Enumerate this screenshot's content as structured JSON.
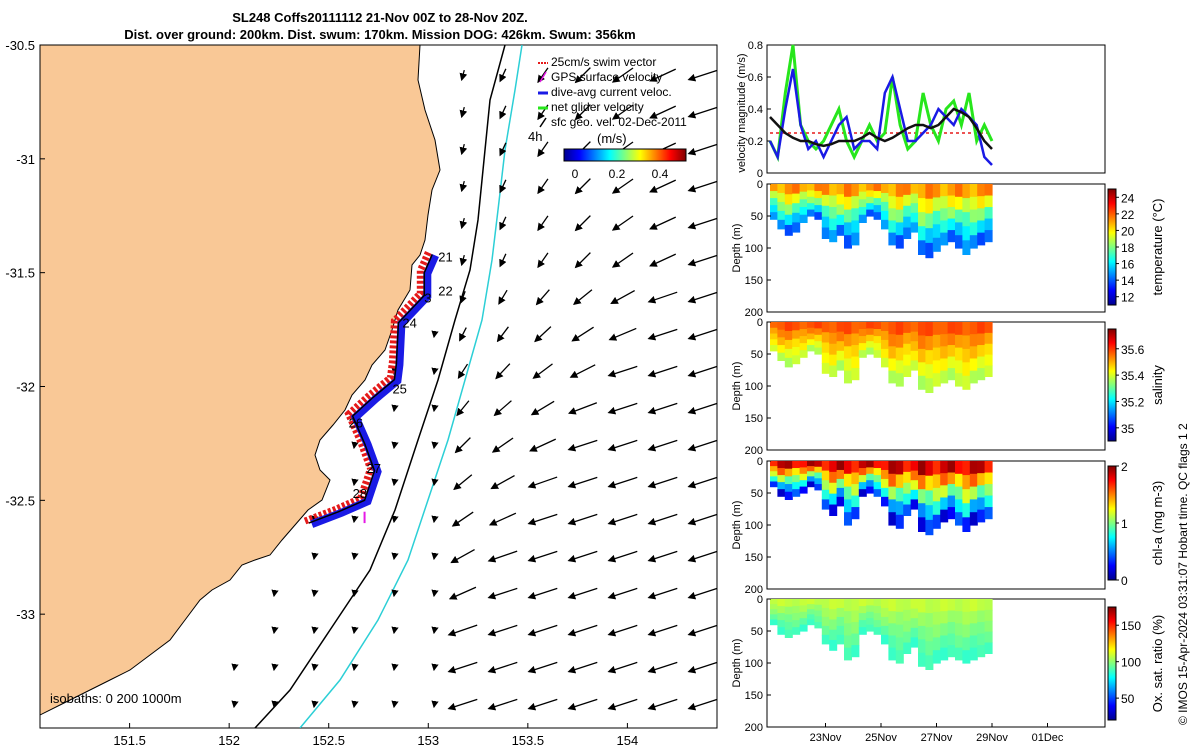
{
  "header": {
    "title_line1": "SL248 Coffs20111112 21-Nov 00Z to 28-Nov 20Z.",
    "title_line2": "Dist. over ground: 200km. Dist. swum: 170km. Mission DOG: 426km. Swum: 356km"
  },
  "credit": "© IMOS 15-Apr-2024 03:31:07 Hobart time. QC flags 1  2",
  "colors": {
    "land": "#f9c896",
    "track_red": "#e51a1a",
    "track_blue": "#1a1ae5",
    "gps_magenta": "#e619e6",
    "net_green": "#27e61c",
    "isobath_cyan": "#2ccfd6"
  },
  "chart_data": [
    {
      "type": "map",
      "xlim": [
        151.05,
        154.45
      ],
      "ylim": [
        -33.5,
        -30.5
      ],
      "xticks": [
        "151.5",
        "152",
        "152.5",
        "153",
        "153.5",
        "154"
      ],
      "yticks": [
        "-30.5",
        "-31",
        "-31.5",
        "-32",
        "-32.5",
        "-33"
      ],
      "isobaths_label": "isobaths: 0  200  1000m",
      "legend": [
        "25cm/s swim vector",
        "GPS surface velocity",
        "dive-avg current veloc.",
        "net glider velocity",
        "sfc geo. vel. 02-Dec-2011"
      ],
      "scale_label": "4h",
      "colorbar": {
        "label": "(m/s)",
        "ticks": [
          "0",
          "0.2",
          "0.4"
        ],
        "range": [
          0,
          0.5
        ]
      },
      "day_labels": [
        {
          "text": "21",
          "lon": 153.05,
          "lat": -31.45
        },
        {
          "text": "22",
          "lon": 153.05,
          "lat": -31.6
        },
        {
          "text": "3",
          "lon": 152.98,
          "lat": -31.63
        },
        {
          "text": "24",
          "lon": 152.87,
          "lat": -31.74
        },
        {
          "text": "25",
          "lon": 152.82,
          "lat": -32.03
        },
        {
          "text": "26",
          "lon": 152.6,
          "lat": -32.18
        },
        {
          "text": "27",
          "lon": 152.69,
          "lat": -32.38
        },
        {
          "text": "28",
          "lon": 152.62,
          "lat": -32.49
        }
      ],
      "track": [
        [
          153.02,
          -31.42
        ],
        [
          152.98,
          -31.5
        ],
        [
          152.98,
          -31.6
        ],
        [
          152.85,
          -31.72
        ],
        [
          152.84,
          -31.9
        ],
        [
          152.83,
          -31.97
        ],
        [
          152.72,
          -32.05
        ],
        [
          152.62,
          -32.13
        ],
        [
          152.68,
          -32.25
        ],
        [
          152.73,
          -32.37
        ],
        [
          152.68,
          -32.5
        ],
        [
          152.55,
          -32.55
        ],
        [
          152.4,
          -32.6
        ]
      ]
    },
    {
      "type": "line",
      "ylabel": "velocity magnitude (m/s)",
      "ylim": [
        0,
        0.8
      ],
      "yticks": [
        "0",
        "0.2",
        "0.4",
        "0.6",
        "0.8"
      ],
      "series": [
        {
          "name": "net glider velocity",
          "color": "#27e61c",
          "values": [
            0.2,
            0.1,
            0.5,
            0.8,
            0.3,
            0.2,
            0.15,
            0.2,
            0.3,
            0.4,
            0.2,
            0.1,
            0.2,
            0.3,
            0.2,
            0.25,
            0.6,
            0.3,
            0.15,
            0.2,
            0.5,
            0.3,
            0.2,
            0.4,
            0.45,
            0.3,
            0.5,
            0.2,
            0.3,
            0.2
          ]
        },
        {
          "name": "dive-avg current veloc.",
          "color": "#1a1ae5",
          "values": [
            0.2,
            0.1,
            0.4,
            0.65,
            0.3,
            0.15,
            0.2,
            0.1,
            0.2,
            0.3,
            0.35,
            0.15,
            0.2,
            0.2,
            0.15,
            0.5,
            0.6,
            0.4,
            0.2,
            0.2,
            0.25,
            0.3,
            0.4,
            0.35,
            0.3,
            0.4,
            0.35,
            0.3,
            0.1,
            0.05
          ]
        },
        {
          "name": "sfc geo. vel.",
          "color": "#111111",
          "values": [
            0.35,
            0.3,
            0.25,
            0.22,
            0.2,
            0.2,
            0.18,
            0.17,
            0.18,
            0.2,
            0.2,
            0.2,
            0.22,
            0.25,
            0.22,
            0.2,
            0.22,
            0.25,
            0.28,
            0.3,
            0.3,
            0.28,
            0.3,
            0.35,
            0.4,
            0.38,
            0.35,
            0.28,
            0.2,
            0.15
          ]
        }
      ]
    },
    {
      "type": "heatmap",
      "ylabel": "Depth (m)",
      "ylim": [
        0,
        200
      ],
      "yticks": [
        "0",
        "50",
        "100",
        "150",
        "200"
      ],
      "colorbar_label": "temperature (°C)",
      "colorbar_ticks": [
        "12",
        "14",
        "16",
        "18",
        "20",
        "22",
        "24"
      ],
      "range": [
        11,
        25
      ],
      "surface_value": 22,
      "bottom_value": 13.5,
      "depth_profile": [
        55,
        70,
        80,
        75,
        60,
        50,
        55,
        85,
        90,
        80,
        100,
        95,
        60,
        50,
        55,
        70,
        95,
        100,
        85,
        75,
        110,
        115,
        105,
        95,
        90,
        100,
        110,
        100,
        95,
        90
      ]
    },
    {
      "type": "heatmap",
      "ylabel": "Depth (m)",
      "ylim": [
        0,
        200
      ],
      "yticks": [
        "0",
        "50",
        "100",
        "150",
        "200"
      ],
      "colorbar_label": "salinity",
      "colorbar_ticks": [
        "35",
        "35.2",
        "35.4",
        "35.6"
      ],
      "range": [
        34.9,
        35.75
      ],
      "surface_value": 35.6,
      "bottom_value": 35.35,
      "depth_profile": [
        45,
        60,
        70,
        65,
        55,
        45,
        50,
        80,
        85,
        75,
        95,
        90,
        55,
        50,
        55,
        70,
        95,
        100,
        85,
        75,
        105,
        110,
        100,
        95,
        90,
        100,
        105,
        95,
        90,
        85
      ]
    },
    {
      "type": "heatmap",
      "ylabel": "Depth (m)",
      "ylim": [
        0,
        200
      ],
      "yticks": [
        "0",
        "50",
        "100",
        "150",
        "200"
      ],
      "colorbar_label": "chl-a (mg m-3)",
      "colorbar_ticks": [
        "0",
        "1",
        "2"
      ],
      "range": [
        0,
        2
      ],
      "surface_value": 2,
      "bottom_value": 0.1,
      "depth_profile": [
        40,
        55,
        60,
        55,
        50,
        40,
        45,
        75,
        85,
        70,
        100,
        90,
        55,
        50,
        55,
        70,
        100,
        105,
        85,
        75,
        110,
        115,
        105,
        95,
        90,
        100,
        110,
        100,
        95,
        90
      ]
    },
    {
      "type": "heatmap",
      "ylabel": "Depth (m)",
      "ylim": [
        0,
        200
      ],
      "yticks": [
        "0",
        "50",
        "100",
        "150",
        "200"
      ],
      "colorbar_label": "Ox. sat. ratio (%)",
      "colorbar_ticks": [
        "50",
        "100",
        "150"
      ],
      "range": [
        20,
        175
      ],
      "surface_value": 110,
      "bottom_value": 85,
      "depth_profile": [
        40,
        55,
        60,
        55,
        50,
        40,
        45,
        70,
        80,
        70,
        95,
        90,
        55,
        50,
        55,
        70,
        95,
        100,
        85,
        75,
        105,
        110,
        100,
        95,
        90,
        95,
        100,
        95,
        90,
        85
      ],
      "xticks": [
        "23Nov",
        "25Nov",
        "27Nov",
        "29Nov",
        "01Dec"
      ]
    }
  ]
}
